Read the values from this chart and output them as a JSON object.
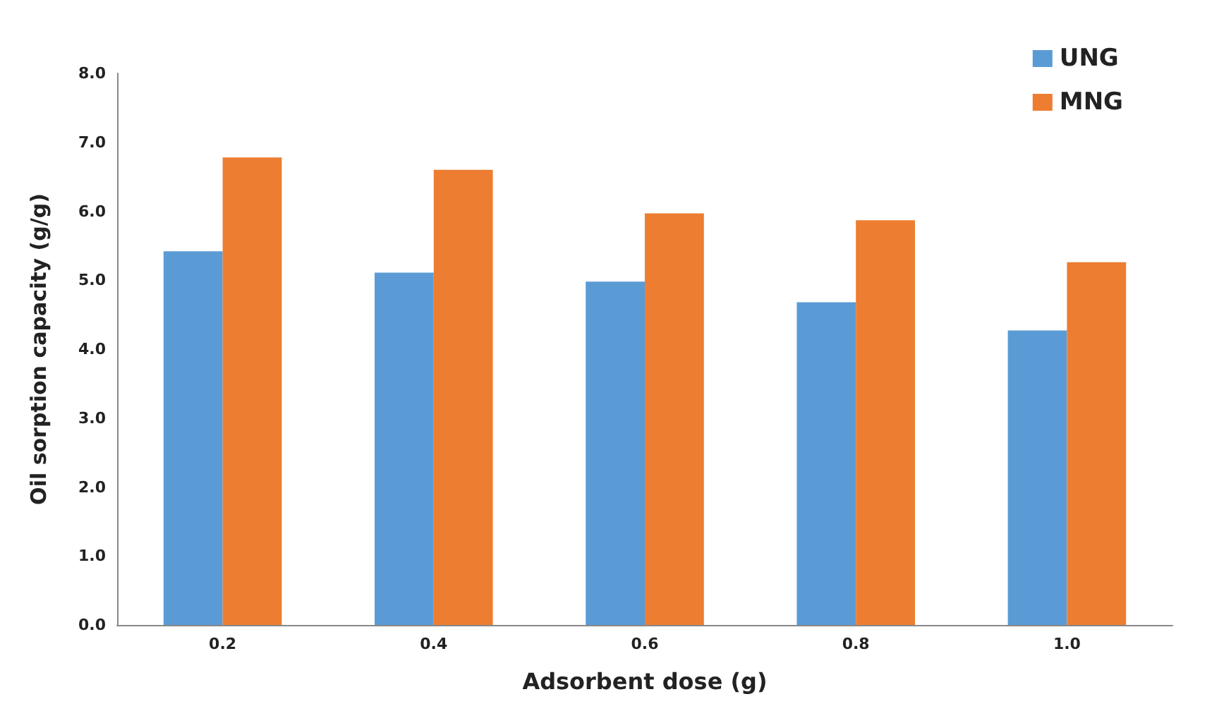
{
  "chart_data": {
    "type": "bar",
    "xlabel": "Adsorbent dose (g)",
    "ylabel": "Oil sorption capacity (g/g)",
    "categories": [
      "0.2",
      "0.4",
      "0.6",
      "0.8",
      "1.0"
    ],
    "series": [
      {
        "name": "UNG",
        "color": "#5b9bd5",
        "values": [
          5.42,
          5.11,
          4.98,
          4.68,
          4.27
        ]
      },
      {
        "name": "MNG",
        "color": "#ed7d31",
        "values": [
          6.78,
          6.6,
          5.97,
          5.87,
          5.26
        ]
      }
    ],
    "ylim": [
      0,
      8
    ],
    "yticks": [
      {
        "value": 0,
        "label": "0.0"
      },
      {
        "value": 1,
        "label": "1.0"
      },
      {
        "value": 2,
        "label": "2.0"
      },
      {
        "value": 3,
        "label": "3.0"
      },
      {
        "value": 4,
        "label": "4.0"
      },
      {
        "value": 5,
        "label": "5.0"
      },
      {
        "value": 6,
        "label": "6.0"
      },
      {
        "value": 7,
        "label": "7.0"
      },
      {
        "value": 8,
        "label": "8.0"
      }
    ],
    "grid": false,
    "legend": "top right"
  }
}
